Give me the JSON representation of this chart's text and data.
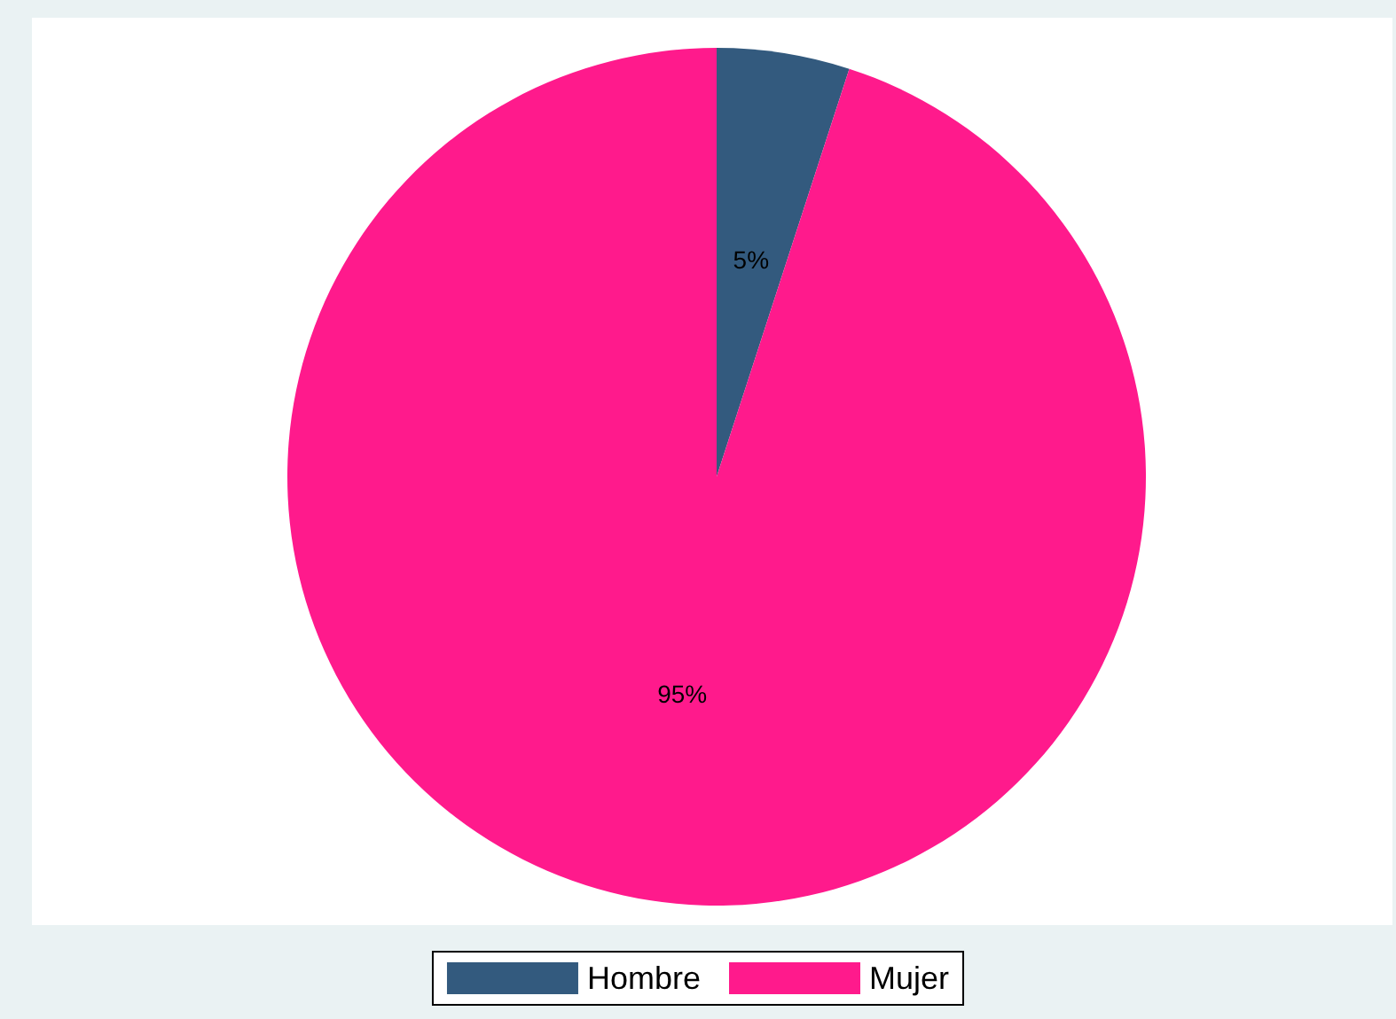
{
  "chart_data": {
    "type": "pie",
    "categories": [
      "Hombre",
      "Mujer"
    ],
    "values": [
      5,
      95
    ],
    "colors": [
      "#335a7e",
      "#ff1a8c"
    ],
    "value_labels": [
      "5%",
      "95%"
    ],
    "legend": "bottom"
  }
}
